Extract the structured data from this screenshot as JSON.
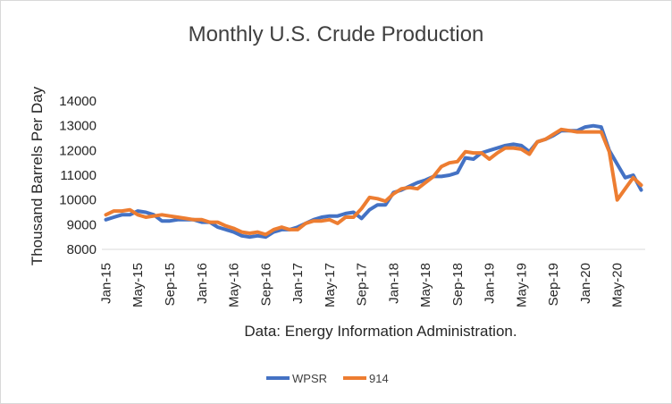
{
  "chart_data": {
    "type": "line",
    "title": "Monthly U.S. Crude Production",
    "xlabel": "Data: Energy Information Administration.",
    "ylabel": "Thousand Barrels Per Day",
    "ylim": [
      8000,
      14000
    ],
    "yticks": [
      8000,
      9000,
      10000,
      11000,
      12000,
      13000,
      14000
    ],
    "ytick_labels": [
      "8000",
      "9000",
      "10000",
      "11000",
      "12000",
      "13000",
      "14000"
    ],
    "xtick_labels": [
      "Jan-15",
      "May-15",
      "Sep-15",
      "Jan-16",
      "May-16",
      "Sep-16",
      "Jan-17",
      "May-17",
      "Sep-17",
      "Jan-18",
      "May-18",
      "Sep-18",
      "Jan-19",
      "May-19",
      "Sep-19",
      "Jan-20",
      "May-20"
    ],
    "x": [
      "Jan-15",
      "Feb-15",
      "Mar-15",
      "Apr-15",
      "May-15",
      "Jun-15",
      "Jul-15",
      "Aug-15",
      "Sep-15",
      "Oct-15",
      "Nov-15",
      "Dec-15",
      "Jan-16",
      "Feb-16",
      "Mar-16",
      "Apr-16",
      "May-16",
      "Jun-16",
      "Jul-16",
      "Aug-16",
      "Sep-16",
      "Oct-16",
      "Nov-16",
      "Dec-16",
      "Jan-17",
      "Feb-17",
      "Mar-17",
      "Apr-17",
      "May-17",
      "Jun-17",
      "Jul-17",
      "Aug-17",
      "Sep-17",
      "Oct-17",
      "Nov-17",
      "Dec-17",
      "Jan-18",
      "Feb-18",
      "Mar-18",
      "Apr-18",
      "May-18",
      "Jun-18",
      "Jul-18",
      "Aug-18",
      "Sep-18",
      "Oct-18",
      "Nov-18",
      "Dec-18",
      "Jan-19",
      "Feb-19",
      "Mar-19",
      "Apr-19",
      "May-19",
      "Jun-19",
      "Jul-19",
      "Aug-19",
      "Sep-19",
      "Oct-19",
      "Nov-19",
      "Dec-19",
      "Jan-20",
      "Feb-20",
      "Mar-20",
      "Apr-20",
      "May-20",
      "Jun-20",
      "Jul-20",
      "Aug-20"
    ],
    "series": [
      {
        "name": "WPSR",
        "color": "#4472C4",
        "values": [
          9200,
          9300,
          9400,
          9400,
          9550,
          9500,
          9400,
          9150,
          9150,
          9200,
          9200,
          9200,
          9100,
          9100,
          8900,
          8800,
          8700,
          8550,
          8500,
          8550,
          8500,
          8700,
          8800,
          8800,
          8900,
          9050,
          9200,
          9300,
          9350,
          9350,
          9450,
          9500,
          9250,
          9600,
          9800,
          9800,
          10300,
          10400,
          10550,
          10700,
          10800,
          10950,
          10950,
          11000,
          11100,
          11700,
          11650,
          11900,
          12000,
          12100,
          12200,
          12250,
          12200,
          11950,
          12350,
          12450,
          12600,
          12800,
          12800,
          12800,
          12950,
          13000,
          12950,
          12000,
          11450,
          10900,
          11000,
          10400
        ]
      },
      {
        "name": "914",
        "color": "#ED7D31",
        "values": [
          9400,
          9550,
          9550,
          9600,
          9400,
          9300,
          9350,
          9400,
          9350,
          9300,
          9250,
          9200,
          9200,
          9100,
          9100,
          8950,
          8850,
          8700,
          8650,
          8700,
          8600,
          8800,
          8900,
          8800,
          8800,
          9050,
          9150,
          9150,
          9200,
          9050,
          9300,
          9300,
          9650,
          10100,
          10050,
          9950,
          10250,
          10450,
          10500,
          10450,
          10700,
          10950,
          11350,
          11500,
          11550,
          11950,
          11900,
          11900,
          11650,
          11900,
          12100,
          12100,
          12050,
          11850,
          12350,
          12450,
          12650,
          12850,
          12800,
          12750,
          12750,
          12750,
          12750,
          11950,
          10000,
          10450,
          10900,
          10600
        ]
      }
    ],
    "grid": false,
    "legend_position": "bottom"
  }
}
